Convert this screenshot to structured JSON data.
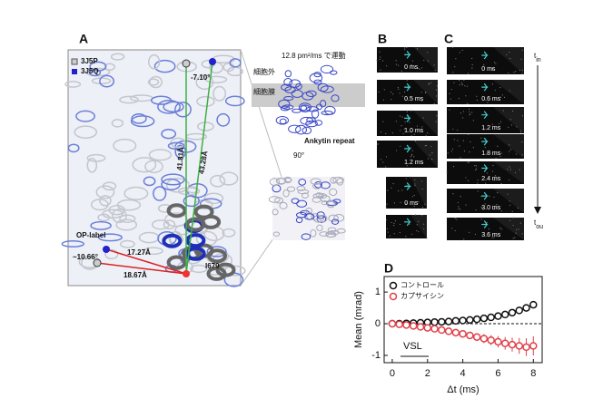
{
  "panels": {
    "A": {
      "label": "A",
      "legend": [
        "3J5P",
        "3J5Q"
      ],
      "annotations": [
        "-7.10°",
        "41.81Å",
        "43.28Å",
        "OP-label",
        "~10.66°",
        "17.27Å",
        "18.67Å",
        "I679"
      ]
    },
    "inset": {
      "motion": "12.8 pm²/ms で運動",
      "extracellular": "細胞外",
      "membrane": "細胞膜",
      "ankyrin": "Ankytin repeat",
      "rotation": "90°"
    },
    "B": {
      "label": "B",
      "frames": [
        "0 ms",
        "0.5 ms",
        "1.0 ms",
        "1.2 ms",
        "0 ms"
      ]
    },
    "C": {
      "label": "C",
      "frames": [
        "0 ms",
        "0.6 ms",
        "1.2 ms",
        "1.8 ms",
        "2.4 ms",
        "3.0 ms",
        "3.6 ms"
      ],
      "t_start": {
        "main": "t",
        "sub": "in"
      },
      "t_end": {
        "main": "t",
        "sub": "ou"
      }
    },
    "D": {
      "label": "D"
    }
  },
  "chart_data": {
    "type": "scatter",
    "x_label": "Δt (ms)",
    "y_label": "Mean (mrad)",
    "annotation": "VSL",
    "x": [
      0,
      0.4,
      0.8,
      1.2,
      1.6,
      2,
      2.4,
      2.8,
      3.2,
      3.6,
      4,
      4.4,
      4.8,
      5.2,
      5.6,
      6,
      6.4,
      6.8,
      7.2,
      7.6,
      8
    ],
    "series": [
      {
        "name": "コントロール",
        "color": "#111111",
        "values": [
          0,
          0,
          0.01,
          0.02,
          0.03,
          0.04,
          0.05,
          0.06,
          0.07,
          0.09,
          0.1,
          0.12,
          0.14,
          0.17,
          0.2,
          0.24,
          0.29,
          0.35,
          0.42,
          0.5,
          0.6
        ],
        "errors": [
          0.03,
          0.03,
          0.03,
          0.03,
          0.03,
          0.03,
          0.04,
          0.04,
          0.04,
          0.04,
          0.05,
          0.05,
          0.05,
          0.05,
          0.06,
          0.06,
          0.07,
          0.07,
          0.08,
          0.09,
          0.1
        ]
      },
      {
        "name": "カプサイシン",
        "color": "#e0404a",
        "values": [
          0,
          -0.02,
          -0.04,
          -0.07,
          -0.1,
          -0.13,
          -0.16,
          -0.2,
          -0.24,
          -0.28,
          -0.32,
          -0.37,
          -0.42,
          -0.47,
          -0.52,
          -0.57,
          -0.62,
          -0.66,
          -0.7,
          -0.74,
          -0.7
        ],
        "errors": [
          0.03,
          0.03,
          0.04,
          0.04,
          0.05,
          0.05,
          0.06,
          0.07,
          0.08,
          0.09,
          0.1,
          0.11,
          0.12,
          0.14,
          0.16,
          0.18,
          0.2,
          0.22,
          0.25,
          0.28,
          0.3
        ]
      }
    ],
    "xlim": [
      -0.46,
      8.5
    ],
    "ylim": [
      -1.23,
      1.49
    ],
    "xticks": [
      0,
      2,
      4,
      6,
      8
    ],
    "yticks": [
      -1,
      0,
      1
    ],
    "legend": "upper left"
  }
}
